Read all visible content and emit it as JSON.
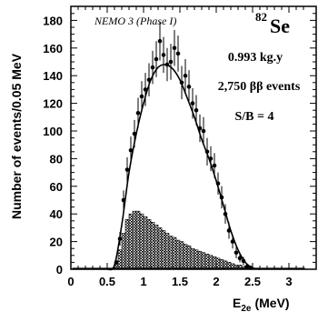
{
  "chart_data": {
    "type": "line",
    "title": "",
    "ylabel": "Number of events/0.05 MeV",
    "xlabel_main": "E",
    "xlabel_sub": "2e",
    "xlabel_unit": "(MeV)",
    "xlim": [
      0,
      3.25
    ],
    "ylim": [
      0,
      190
    ],
    "xticks": [
      "0",
      "0.5",
      "1",
      "1.5",
      "2",
      "2.5",
      "3"
    ],
    "xtick_values": [
      0,
      0.5,
      1,
      1.5,
      2,
      2.5,
      3
    ],
    "yticks": [
      "0",
      "20",
      "40",
      "60",
      "80",
      "100",
      "120",
      "140",
      "160",
      "180"
    ],
    "ytick_values": [
      0,
      20,
      40,
      60,
      80,
      100,
      120,
      140,
      160,
      180
    ],
    "grid": false,
    "annotations": {
      "experiment": "NEMO 3 (Phase I)",
      "isotope_mass": "82",
      "isotope_symbol": "Se",
      "exposure": "0.993 kg.y",
      "events": "2,750 ββ events",
      "signal_to_background": "S/B = 4"
    },
    "series": [
      {
        "kind": "data-points",
        "x": [
          0.625,
          0.675,
          0.725,
          0.775,
          0.825,
          0.875,
          0.925,
          0.975,
          1.025,
          1.075,
          1.125,
          1.175,
          1.225,
          1.275,
          1.325,
          1.375,
          1.425,
          1.475,
          1.525,
          1.575,
          1.625,
          1.675,
          1.725,
          1.775,
          1.825,
          1.875,
          1.925,
          1.975,
          2.025,
          2.075,
          2.125,
          2.175,
          2.225,
          2.275,
          2.325,
          2.375,
          2.425,
          2.475
        ],
        "y": [
          5,
          22,
          50,
          72,
          86,
          98,
          113,
          125,
          130,
          137,
          146,
          152,
          165,
          155,
          148,
          150,
          160,
          156,
          135,
          140,
          132,
          120,
          115,
          102,
          100,
          85,
          80,
          75,
          62,
          52,
          40,
          28,
          20,
          12,
          8,
          6,
          2,
          1
        ],
        "err": [
          2,
          5,
          7,
          9,
          10,
          10,
          11,
          11,
          12,
          12,
          12,
          13,
          14,
          13,
          12,
          13,
          13,
          13,
          12,
          12,
          12,
          11,
          11,
          10,
          10,
          10,
          9,
          9,
          8,
          8,
          7,
          6,
          5,
          4,
          3,
          3,
          2,
          1
        ]
      },
      {
        "kind": "fit-curve",
        "x": [
          0.5,
          0.6,
          0.7,
          0.8,
          0.9,
          1.0,
          1.1,
          1.2,
          1.3,
          1.4,
          1.5,
          1.6,
          1.7,
          1.8,
          1.9,
          2.0,
          2.1,
          2.2,
          2.3,
          2.4,
          2.5,
          2.6
        ],
        "y": [
          0,
          3,
          32,
          70,
          98,
          120,
          137,
          146,
          148,
          145,
          137,
          124,
          110,
          94,
          80,
          64,
          46,
          28,
          14,
          5,
          1,
          0
        ]
      },
      {
        "kind": "background-histogram",
        "bin_width": 0.05,
        "x": [
          0.55,
          0.6,
          0.65,
          0.7,
          0.75,
          0.8,
          0.85,
          0.9,
          0.95,
          1.0,
          1.05,
          1.1,
          1.15,
          1.2,
          1.25,
          1.3,
          1.35,
          1.4,
          1.45,
          1.5,
          1.55,
          1.6,
          1.65,
          1.7,
          1.75,
          1.8,
          1.85,
          1.9,
          1.95,
          2.0,
          2.05,
          2.1,
          2.15,
          2.2,
          2.25,
          2.3,
          2.35,
          2.4,
          2.45,
          2.5
        ],
        "y": [
          0,
          4,
          14,
          26,
          36,
          40,
          42,
          42,
          40,
          38,
          36,
          34,
          32,
          30,
          28,
          26,
          24,
          23,
          21,
          20,
          18,
          17,
          15,
          14,
          13,
          12,
          11,
          10,
          9,
          8,
          7,
          6,
          5,
          4,
          3,
          3,
          2,
          1,
          1,
          0
        ]
      }
    ]
  }
}
